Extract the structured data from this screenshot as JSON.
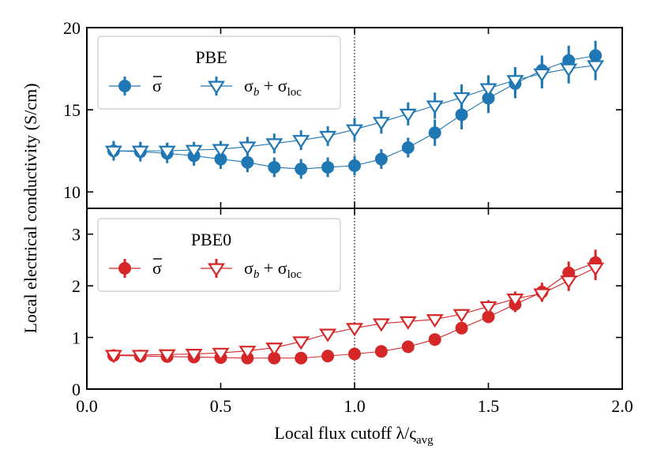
{
  "chart_data": [
    {
      "type": "line",
      "panel": "top",
      "legend_title": "PBE",
      "legend_position": "upper-left",
      "color": "#1f77b4",
      "ylim": [
        9.0,
        20.0
      ],
      "yticks": [
        10,
        15,
        20
      ],
      "ytick_labels": [
        "10",
        "15",
        "20"
      ],
      "x": [
        0.1,
        0.2,
        0.3,
        0.4,
        0.5,
        0.6,
        0.7,
        0.8,
        0.9,
        1.0,
        1.1,
        1.2,
        1.3,
        1.4,
        1.5,
        1.6,
        1.7,
        1.8,
        1.9
      ],
      "series": [
        {
          "name": "σ̄",
          "label_main": "σ",
          "marker": "filled-circle",
          "values": [
            12.5,
            12.45,
            12.35,
            12.2,
            12.0,
            11.8,
            11.5,
            11.4,
            11.5,
            11.6,
            12.0,
            12.7,
            13.6,
            14.7,
            15.7,
            16.6,
            17.4,
            18.0,
            18.3
          ],
          "errors": [
            0.6,
            0.6,
            0.6,
            0.6,
            0.6,
            0.6,
            0.6,
            0.6,
            0.6,
            0.6,
            0.6,
            0.6,
            0.8,
            0.9,
            0.9,
            0.9,
            0.9,
            0.9,
            0.9
          ]
        },
        {
          "name": "σb + σloc",
          "label_main": "σ",
          "label_sub1": "b",
          "label_op": " + σ",
          "label_sub2": "loc",
          "marker": "open-triangle-down",
          "values": [
            12.5,
            12.5,
            12.5,
            12.55,
            12.6,
            12.75,
            12.95,
            13.15,
            13.4,
            13.8,
            14.25,
            14.75,
            15.25,
            15.75,
            16.3,
            16.8,
            17.2,
            17.5,
            17.7
          ],
          "errors": [
            0.5,
            0.5,
            0.5,
            0.5,
            0.5,
            0.6,
            0.6,
            0.6,
            0.6,
            0.7,
            0.7,
            0.7,
            0.8,
            0.8,
            0.8,
            0.8,
            0.9,
            0.9,
            0.9
          ]
        }
      ]
    },
    {
      "type": "line",
      "panel": "bottom",
      "legend_title": "PBE0",
      "legend_position": "upper-left",
      "color": "#d62728",
      "ylim": [
        0.0,
        3.5
      ],
      "yticks": [
        0,
        1,
        2,
        3
      ],
      "ytick_labels": [
        "0",
        "1",
        "2",
        "3"
      ],
      "x": [
        0.1,
        0.2,
        0.3,
        0.4,
        0.5,
        0.6,
        0.7,
        0.8,
        0.9,
        1.0,
        1.1,
        1.2,
        1.3,
        1.4,
        1.5,
        1.6,
        1.7,
        1.8,
        1.9
      ],
      "series": [
        {
          "name": "σ̄",
          "label_main": "σ",
          "marker": "filled-circle",
          "values": [
            0.65,
            0.64,
            0.63,
            0.62,
            0.61,
            0.6,
            0.6,
            0.6,
            0.64,
            0.68,
            0.73,
            0.82,
            0.96,
            1.18,
            1.4,
            1.64,
            1.88,
            2.25,
            2.45
          ],
          "errors": [
            0.05,
            0.05,
            0.05,
            0.05,
            0.05,
            0.05,
            0.05,
            0.05,
            0.05,
            0.06,
            0.06,
            0.07,
            0.08,
            0.1,
            0.12,
            0.15,
            0.18,
            0.22,
            0.25
          ]
        },
        {
          "name": "σb + σloc",
          "label_main": "σ",
          "label_sub1": "b",
          "label_op": " + σ",
          "label_sub2": "loc",
          "marker": "open-triangle-down",
          "values": [
            0.66,
            0.66,
            0.67,
            0.68,
            0.7,
            0.74,
            0.8,
            0.92,
            1.07,
            1.18,
            1.27,
            1.31,
            1.35,
            1.45,
            1.6,
            1.75,
            1.85,
            2.1,
            2.35
          ],
          "errors": [
            0.05,
            0.05,
            0.05,
            0.05,
            0.05,
            0.05,
            0.06,
            0.06,
            0.07,
            0.08,
            0.08,
            0.09,
            0.1,
            0.1,
            0.12,
            0.14,
            0.16,
            0.2,
            0.24
          ]
        }
      ]
    }
  ],
  "shared": {
    "xlim": [
      0.0,
      2.0
    ],
    "xticks": [
      0.0,
      0.5,
      1.0,
      1.5,
      2.0
    ],
    "xtick_labels": [
      "0.0",
      "0.5",
      "1.0",
      "1.5",
      "2.0"
    ],
    "xlabel_text": "Local flux cutoff λ/ς",
    "xlabel_sub": "avg",
    "ylabel": "Local electrical conductivity (S/cm)",
    "reference_line_x": 1.0
  }
}
